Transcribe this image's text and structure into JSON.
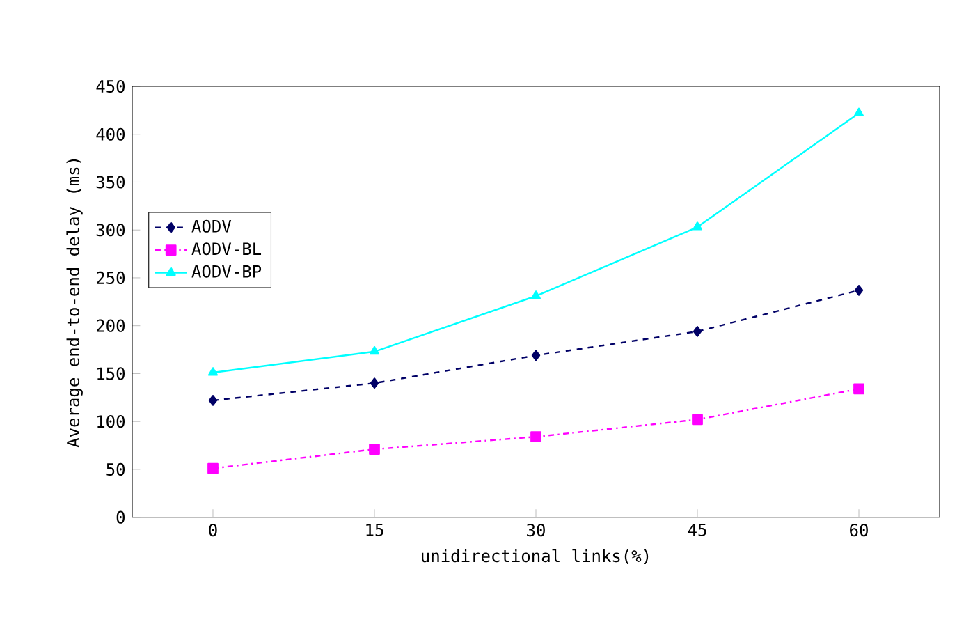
{
  "chart_data": {
    "type": "line",
    "xlabel": "unidirectional links(%)",
    "ylabel": "Average end-to-end delay (ms)",
    "categories": [
      "0",
      "15",
      "30",
      "45",
      "60"
    ],
    "ylim": [
      0,
      450
    ],
    "yticks": [
      0,
      50,
      100,
      150,
      200,
      250,
      300,
      350,
      400,
      450
    ],
    "grid": false,
    "legend": "left",
    "series": [
      {
        "name": "AODV",
        "color": "#000066",
        "marker": "diamond",
        "line_style": "dashed",
        "values": [
          122,
          140,
          169,
          194,
          237
        ]
      },
      {
        "name": "AODV-BL",
        "color": "#ff00ff",
        "marker": "square",
        "line_style": "dashdot",
        "values": [
          51,
          71,
          84,
          102,
          134
        ]
      },
      {
        "name": "AODV-BP",
        "color": "#00ffff",
        "marker": "triangle",
        "line_style": "solid",
        "values": [
          151,
          173,
          231,
          303,
          422
        ]
      }
    ]
  }
}
